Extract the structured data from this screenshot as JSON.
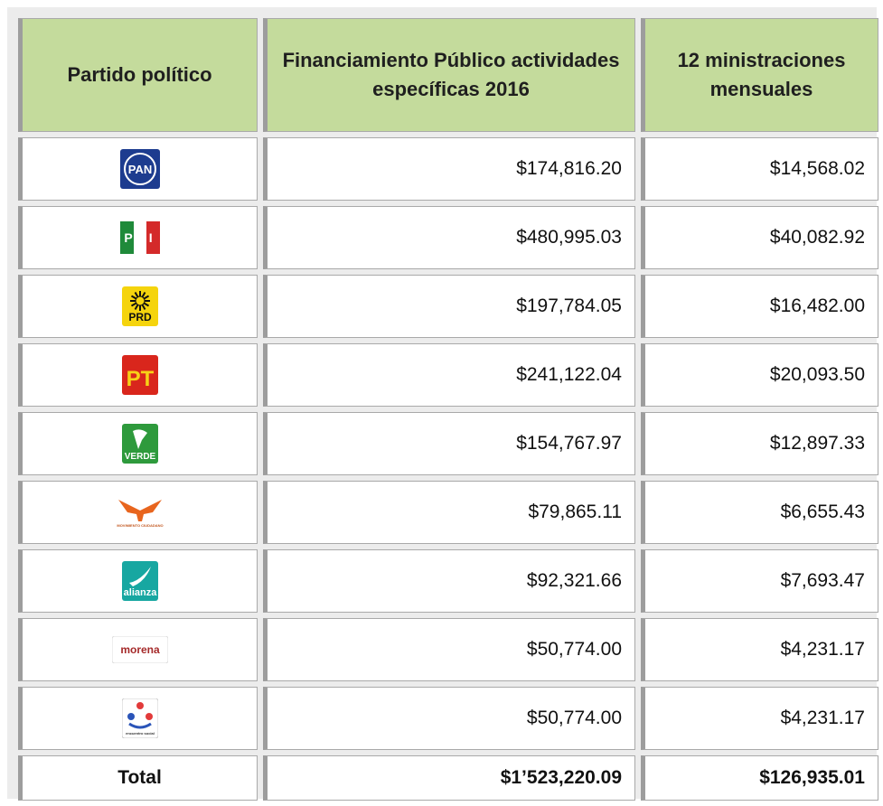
{
  "table": {
    "header": [
      "Partido político",
      "Financiamiento Público actividades específicas 2016",
      "12 ministraciones mensuales"
    ],
    "rows": [
      {
        "logo": "PAN",
        "financiamiento": "$174,816.20",
        "ministraciones": "$14,568.02"
      },
      {
        "logo": "PRI",
        "financiamiento": "$480,995.03",
        "ministraciones": "$40,082.92"
      },
      {
        "logo": "PRD",
        "financiamiento": "$197,784.05",
        "ministraciones": "$16,482.00"
      },
      {
        "logo": "PT",
        "financiamiento": "$241,122.04",
        "ministraciones": "$20,093.50"
      },
      {
        "logo": "VERDE",
        "financiamiento": "$154,767.97",
        "ministraciones": "$12,897.33"
      },
      {
        "logo": "MOVIMIENTO CIUDADANO",
        "financiamiento": "$79,865.11",
        "ministraciones": "$6,655.43"
      },
      {
        "logo": "alianza",
        "financiamiento": "$92,321.66",
        "ministraciones": "$7,693.47"
      },
      {
        "logo": "morena",
        "financiamiento": "$50,774.00",
        "ministraciones": "$4,231.17"
      },
      {
        "logo": "encuentro social",
        "financiamiento": "$50,774.00",
        "ministraciones": "$4,231.17"
      }
    ],
    "total": [
      "Total",
      "$1’523,220.09",
      "$126,935.01"
    ]
  }
}
